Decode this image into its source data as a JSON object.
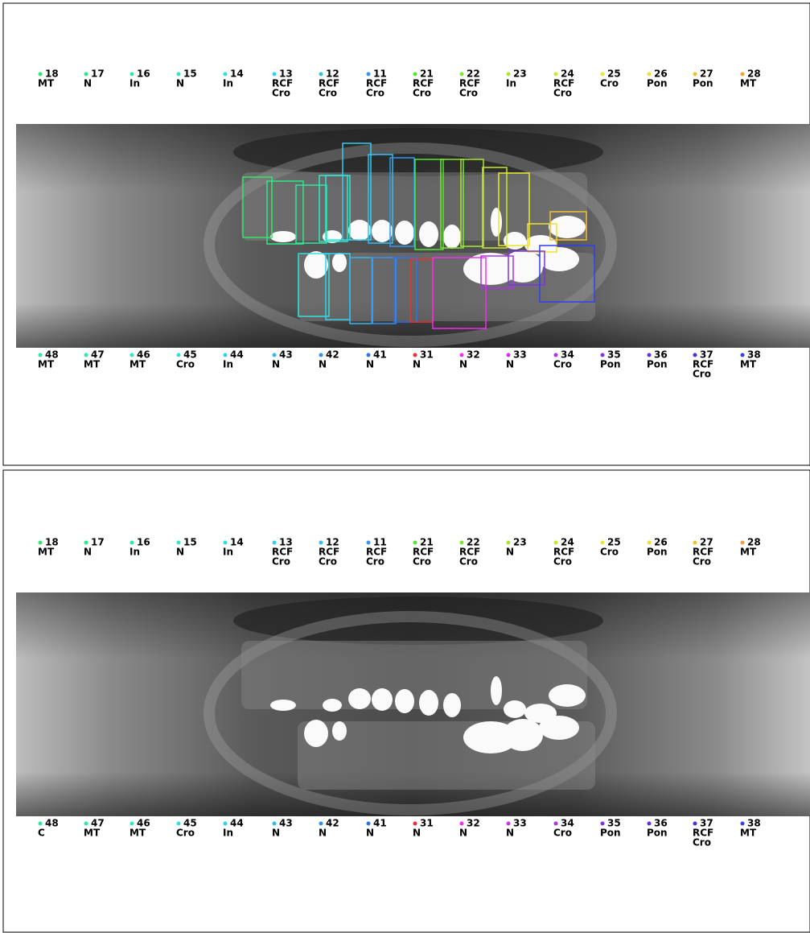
{
  "panels": [
    {
      "upper": [
        {
          "number": "18",
          "color": "#2ee86a",
          "status": [
            "MT"
          ]
        },
        {
          "number": "17",
          "color": "#2ee884",
          "status": [
            "N"
          ]
        },
        {
          "number": "16",
          "color": "#2ee8a0",
          "status": [
            "In"
          ]
        },
        {
          "number": "15",
          "color": "#2ee8c0",
          "status": [
            "N"
          ]
        },
        {
          "number": "14",
          "color": "#30e0e0",
          "status": [
            "In"
          ]
        },
        {
          "number": "13",
          "color": "#30d0f0",
          "status": [
            "RCF",
            "Cro"
          ]
        },
        {
          "number": "12",
          "color": "#30c0f0",
          "status": [
            "RCF",
            "Cro"
          ]
        },
        {
          "number": "11",
          "color": "#3098f0",
          "status": [
            "RCF",
            "Cro"
          ]
        },
        {
          "number": "21",
          "color": "#50e830",
          "status": [
            "RCF",
            "Cro"
          ]
        },
        {
          "number": "22",
          "color": "#80e830",
          "status": [
            "RCF",
            "Cro"
          ]
        },
        {
          "number": "23",
          "color": "#a8e830",
          "status": [
            "In"
          ]
        },
        {
          "number": "24",
          "color": "#c8e830",
          "status": [
            "RCF",
            "Cro"
          ]
        },
        {
          "number": "25",
          "color": "#e8e830",
          "status": [
            "Cro"
          ]
        },
        {
          "number": "26",
          "color": "#f0e030",
          "status": [
            "Pon"
          ]
        },
        {
          "number": "27",
          "color": "#f0c030",
          "status": [
            "Pon"
          ]
        },
        {
          "number": "28",
          "color": "#f0a030",
          "status": [
            "MT"
          ]
        }
      ],
      "lower": [
        {
          "number": "48",
          "color": "#2ee8a0",
          "status": [
            "MT"
          ]
        },
        {
          "number": "47",
          "color": "#2ee8b0",
          "status": [
            "MT"
          ]
        },
        {
          "number": "46",
          "color": "#2ee8c8",
          "status": [
            "MT"
          ]
        },
        {
          "number": "45",
          "color": "#30e0e0",
          "status": [
            "Cro"
          ]
        },
        {
          "number": "44",
          "color": "#30d0f0",
          "status": [
            "In"
          ]
        },
        {
          "number": "43",
          "color": "#30b8f0",
          "status": [
            "N"
          ]
        },
        {
          "number": "42",
          "color": "#3090f0",
          "status": [
            "N"
          ]
        },
        {
          "number": "41",
          "color": "#3070f0",
          "status": [
            "N"
          ]
        },
        {
          "number": "31",
          "color": "#f03030",
          "status": [
            "N"
          ]
        },
        {
          "number": "32",
          "color": "#f030f0",
          "status": [
            "N"
          ]
        },
        {
          "number": "33",
          "color": "#d030f0",
          "status": [
            "N"
          ]
        },
        {
          "number": "34",
          "color": "#b030f0",
          "status": [
            "Cro"
          ]
        },
        {
          "number": "35",
          "color": "#8030f0",
          "status": [
            "Pon"
          ]
        },
        {
          "number": "36",
          "color": "#6030f0",
          "status": [
            "Pon"
          ]
        },
        {
          "number": "37",
          "color": "#4030f0",
          "status": [
            "RCF",
            "Cro"
          ]
        },
        {
          "number": "38",
          "color": "#3040f0",
          "status": [
            "MT"
          ]
        }
      ]
    },
    {
      "upper": [
        {
          "number": "18",
          "color": "#2ee86a",
          "status": [
            "MT"
          ]
        },
        {
          "number": "17",
          "color": "#2ee884",
          "status": [
            "N"
          ]
        },
        {
          "number": "16",
          "color": "#2ee8a0",
          "status": [
            "In"
          ]
        },
        {
          "number": "15",
          "color": "#2ee8c0",
          "status": [
            "N"
          ]
        },
        {
          "number": "14",
          "color": "#30e0e0",
          "status": [
            "In"
          ]
        },
        {
          "number": "13",
          "color": "#30d0f0",
          "status": [
            "RCF",
            "Cro"
          ]
        },
        {
          "number": "12",
          "color": "#30c0f0",
          "status": [
            "RCF",
            "Cro"
          ]
        },
        {
          "number": "11",
          "color": "#3098f0",
          "status": [
            "RCF",
            "Cro"
          ]
        },
        {
          "number": "21",
          "color": "#50e830",
          "status": [
            "RCF",
            "Cro"
          ]
        },
        {
          "number": "22",
          "color": "#80e830",
          "status": [
            "RCF",
            "Cro"
          ]
        },
        {
          "number": "23",
          "color": "#a8e830",
          "status": [
            "N"
          ]
        },
        {
          "number": "24",
          "color": "#c8e830",
          "status": [
            "RCF",
            "Cro"
          ]
        },
        {
          "number": "25",
          "color": "#e8e830",
          "status": [
            "Cro"
          ]
        },
        {
          "number": "26",
          "color": "#f0e030",
          "status": [
            "Pon"
          ]
        },
        {
          "number": "27",
          "color": "#f0c030",
          "status": [
            "RCF",
            "Cro"
          ]
        },
        {
          "number": "28",
          "color": "#f0a030",
          "status": [
            "MT"
          ]
        }
      ],
      "lower": [
        {
          "number": "48",
          "color": "#2ee8a0",
          "status": [
            "C"
          ]
        },
        {
          "number": "47",
          "color": "#2ee8b0",
          "status": [
            "MT"
          ]
        },
        {
          "number": "46",
          "color": "#2ee8c8",
          "status": [
            "MT"
          ]
        },
        {
          "number": "45",
          "color": "#30e0e0",
          "status": [
            "Cro"
          ]
        },
        {
          "number": "44",
          "color": "#30d0f0",
          "status": [
            "In"
          ]
        },
        {
          "number": "43",
          "color": "#30b8f0",
          "status": [
            "N"
          ]
        },
        {
          "number": "42",
          "color": "#3090f0",
          "status": [
            "N"
          ]
        },
        {
          "number": "41",
          "color": "#3070f0",
          "status": [
            "N"
          ]
        },
        {
          "number": "31",
          "color": "#f03030",
          "status": [
            "N"
          ]
        },
        {
          "number": "32",
          "color": "#f030f0",
          "status": [
            "N"
          ]
        },
        {
          "number": "33",
          "color": "#d030f0",
          "status": [
            "N"
          ]
        },
        {
          "number": "34",
          "color": "#b030f0",
          "status": [
            "Cro"
          ]
        },
        {
          "number": "35",
          "color": "#8030f0",
          "status": [
            "Pon"
          ]
        },
        {
          "number": "36",
          "color": "#6030f0",
          "status": [
            "Pon"
          ]
        },
        {
          "number": "37",
          "color": "#4030f0",
          "status": [
            "RCF",
            "Cro"
          ]
        },
        {
          "number": "38",
          "color": "#3040f0",
          "status": [
            "MT"
          ]
        }
      ]
    }
  ]
}
